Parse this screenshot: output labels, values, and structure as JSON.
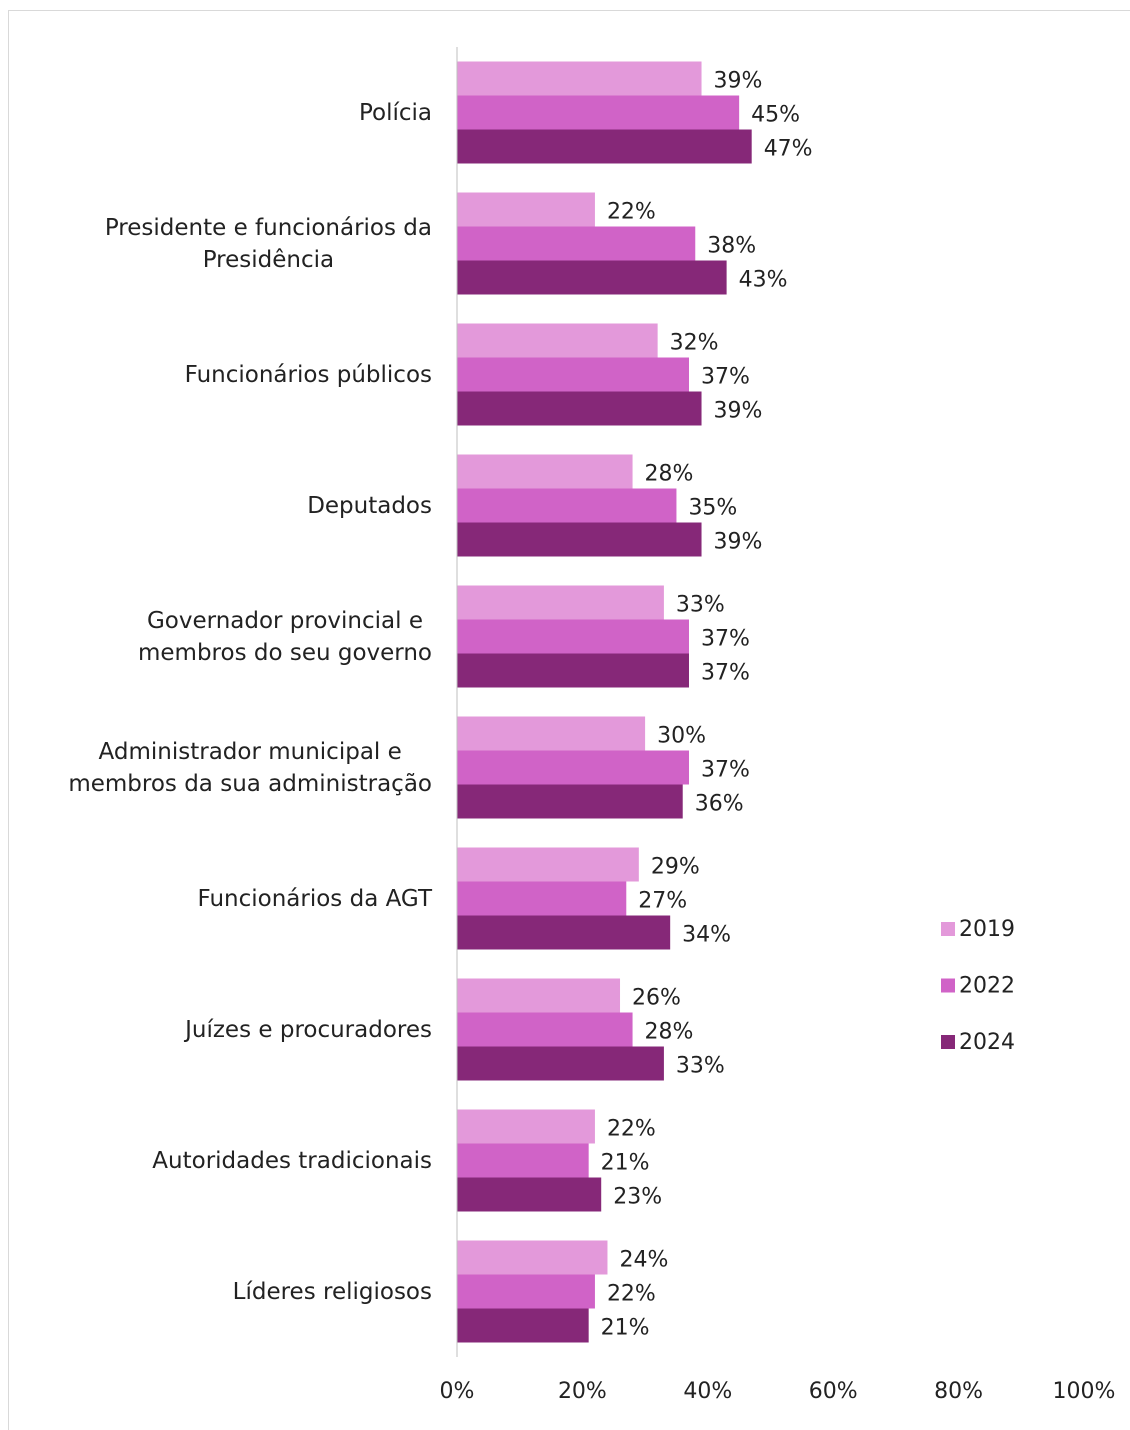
{
  "chart_data": {
    "type": "bar",
    "orientation": "horizontal",
    "categories": [
      "Polícia",
      "Presidente e funcionários da\nPresidência",
      "Funcionários públicos",
      "Deputados",
      "Governador provincial e\nmembros do seu governo",
      "Administrador municipal e\nmembros da sua administração",
      "Funcionários da AGT",
      "Juízes e procuradores",
      "Autoridades tradicionais",
      "Líderes religiosos"
    ],
    "series": [
      {
        "name": "2019",
        "color": "#e399da",
        "values": [
          39,
          22,
          32,
          28,
          33,
          30,
          29,
          26,
          22,
          24
        ],
        "value_labels": [
          "39%",
          "22%",
          "32%",
          "28%",
          "33%",
          "30%",
          "29%",
          "26%",
          "22%",
          "24%"
        ]
      },
      {
        "name": "2022",
        "color": "#d063c7",
        "values": [
          45,
          38,
          37,
          35,
          37,
          37,
          27,
          28,
          21,
          22
        ],
        "value_labels": [
          "45%",
          "38%",
          "37%",
          "35%",
          "37%",
          "37%",
          "27%",
          "28%",
          "21%",
          "22%"
        ]
      },
      {
        "name": "2024",
        "color": "#862878",
        "values": [
          47,
          43,
          39,
          39,
          37,
          36,
          34,
          33,
          23,
          21
        ],
        "value_labels": [
          "47%",
          "43%",
          "39%",
          "39%",
          "37%",
          "36%",
          "34%",
          "33%",
          "23%",
          "21%"
        ]
      }
    ],
    "xlim": [
      0,
      100
    ],
    "xticks": [
      {
        "value": 0,
        "label": "0%"
      },
      {
        "value": 20,
        "label": "20%"
      },
      {
        "value": 40,
        "label": "40%"
      },
      {
        "value": 60,
        "label": "60%"
      },
      {
        "value": 80,
        "label": "80%"
      },
      {
        "value": 100,
        "label": "100%"
      }
    ],
    "grid": false,
    "legend": "right"
  }
}
